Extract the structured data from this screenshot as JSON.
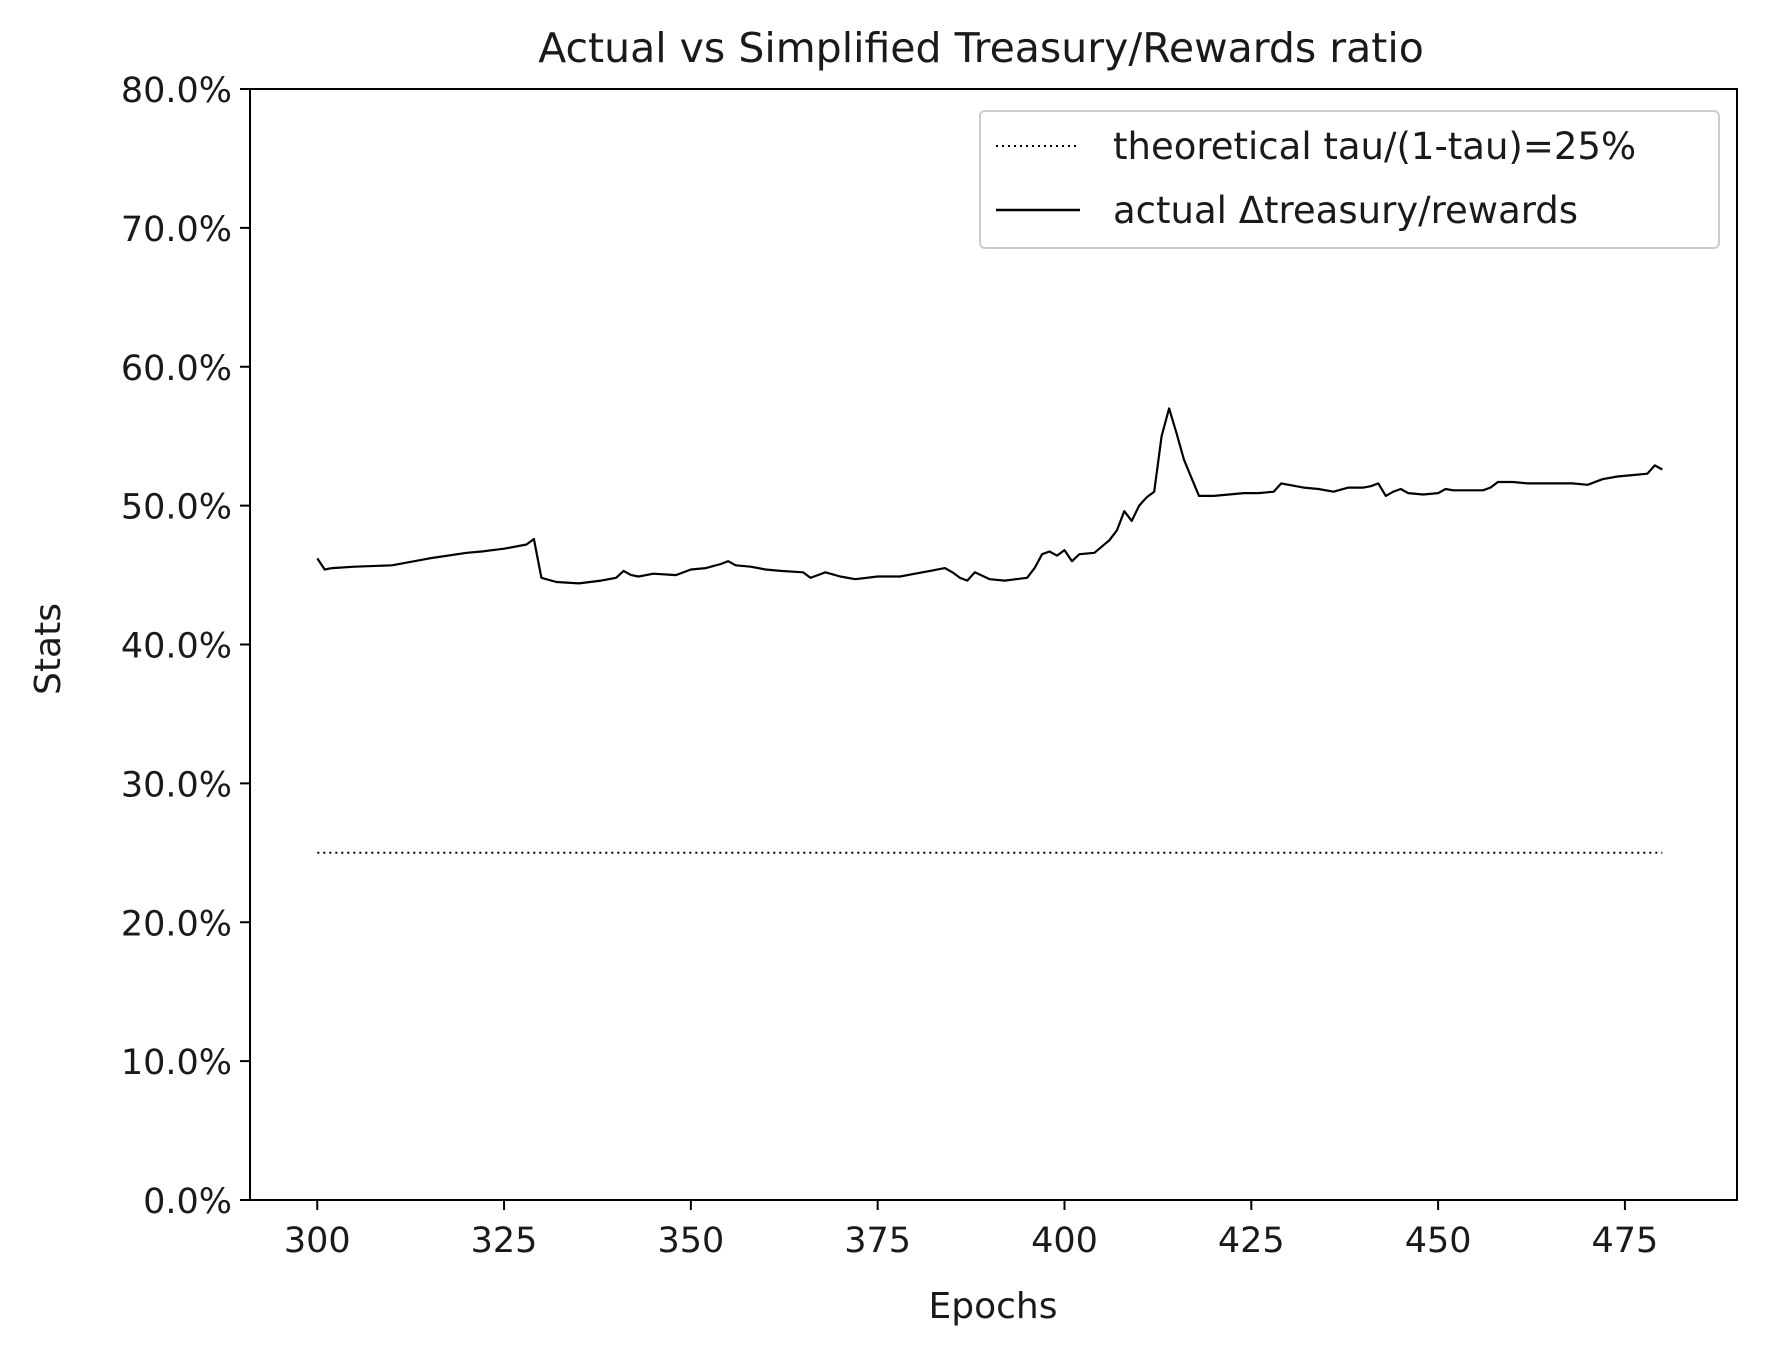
{
  "chart_data": {
    "type": "line",
    "title": "Actual vs Simplified Treasury/Rewards ratio",
    "xlabel": "Epochs",
    "ylabel": "Stats",
    "xlim": [
      291,
      490
    ],
    "ylim": [
      0,
      80
    ],
    "x_ticks": [
      300,
      325,
      350,
      375,
      400,
      425,
      450,
      475
    ],
    "y_ticks": [
      0,
      10,
      20,
      30,
      40,
      50,
      60,
      70,
      80
    ],
    "y_tick_labels": [
      "0.0%",
      "10.0%",
      "20.0%",
      "30.0%",
      "40.0%",
      "50.0%",
      "60.0%",
      "70.0%",
      "80.0%"
    ],
    "grid": false,
    "legend_position": "upper right",
    "series": [
      {
        "name": "theoretical tau/(1-tau)=25%",
        "style": "dotted",
        "color": "#000000",
        "x": [
          300,
          480
        ],
        "y": [
          25,
          25
        ]
      },
      {
        "name": "actual Δtreasury/rewards",
        "style": "solid",
        "color": "#000000",
        "x": [
          300,
          301,
          302,
          305,
          310,
          315,
          320,
          322,
          325,
          328,
          329,
          330,
          332,
          335,
          338,
          340,
          341,
          342,
          343,
          345,
          348,
          350,
          352,
          354,
          355,
          356,
          358,
          360,
          362,
          365,
          366,
          367,
          368,
          370,
          372,
          375,
          378,
          380,
          382,
          384,
          385,
          386,
          387,
          388,
          390,
          392,
          395,
          396,
          397,
          398,
          399,
          400,
          401,
          402,
          404,
          406,
          407,
          408,
          409,
          410,
          411,
          412,
          413,
          414,
          415,
          416,
          417,
          418,
          420,
          422,
          424,
          426,
          428,
          429,
          430,
          432,
          434,
          436,
          438,
          440,
          441,
          442,
          443,
          444,
          445,
          446,
          448,
          450,
          451,
          452,
          454,
          456,
          457,
          458,
          460,
          462,
          465,
          468,
          470,
          472,
          474,
          476,
          478,
          479,
          480
        ],
        "y": [
          46.2,
          45.4,
          45.5,
          45.6,
          45.7,
          46.2,
          46.6,
          46.7,
          46.9,
          47.2,
          47.6,
          44.8,
          44.5,
          44.4,
          44.6,
          44.8,
          45.3,
          45.0,
          44.9,
          45.1,
          45.0,
          45.4,
          45.5,
          45.8,
          46.0,
          45.7,
          45.6,
          45.4,
          45.3,
          45.2,
          44.8,
          45.0,
          45.2,
          44.9,
          44.7,
          44.9,
          44.9,
          45.1,
          45.3,
          45.5,
          45.2,
          44.8,
          44.6,
          45.2,
          44.7,
          44.6,
          44.8,
          45.5,
          46.5,
          46.7,
          46.4,
          46.8,
          46.0,
          46.5,
          46.6,
          47.5,
          48.2,
          49.6,
          48.9,
          50.0,
          50.6,
          51.0,
          55.0,
          57.0,
          55.2,
          53.3,
          52.0,
          50.7,
          50.7,
          50.8,
          50.9,
          50.9,
          51.0,
          51.6,
          51.5,
          51.3,
          51.2,
          51.0,
          51.3,
          51.3,
          51.4,
          51.6,
          50.7,
          51.0,
          51.2,
          50.9,
          50.8,
          50.9,
          51.2,
          51.1,
          51.1,
          51.1,
          51.3,
          51.7,
          51.7,
          51.6,
          51.6,
          51.6,
          51.5,
          51.9,
          52.1,
          52.2,
          52.3,
          52.9,
          52.6
        ]
      }
    ]
  }
}
